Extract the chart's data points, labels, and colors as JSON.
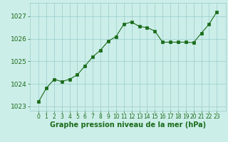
{
  "x": [
    0,
    1,
    2,
    3,
    4,
    5,
    6,
    7,
    8,
    9,
    10,
    11,
    12,
    13,
    14,
    15,
    16,
    17,
    18,
    19,
    20,
    21,
    22,
    23
  ],
  "y": [
    1023.2,
    1023.8,
    1024.2,
    1024.1,
    1024.2,
    1024.4,
    1024.8,
    1025.2,
    1025.5,
    1025.9,
    1026.1,
    1026.65,
    1026.75,
    1026.55,
    1026.5,
    1026.35,
    1025.85,
    1025.85,
    1025.85,
    1025.85,
    1025.83,
    1026.25,
    1026.65,
    1027.2
  ],
  "line_color": "#1a6b1a",
  "marker": "s",
  "marker_size": 2.2,
  "background_color": "#cceee8",
  "grid_color": "#99cccc",
  "xlabel": "Graphe pression niveau de la mer (hPa)",
  "xlabel_color": "#1a6b1a",
  "xlabel_fontsize": 7.0,
  "tick_color": "#1a6b1a",
  "ytick_fontsize": 6.5,
  "xtick_fontsize": 5.5,
  "ylim": [
    1022.8,
    1027.6
  ],
  "yticks": [
    1023,
    1024,
    1025,
    1026,
    1027
  ],
  "xticks": [
    0,
    1,
    2,
    3,
    4,
    5,
    6,
    7,
    8,
    9,
    10,
    11,
    12,
    13,
    14,
    15,
    16,
    17,
    18,
    19,
    20,
    21,
    22,
    23
  ]
}
